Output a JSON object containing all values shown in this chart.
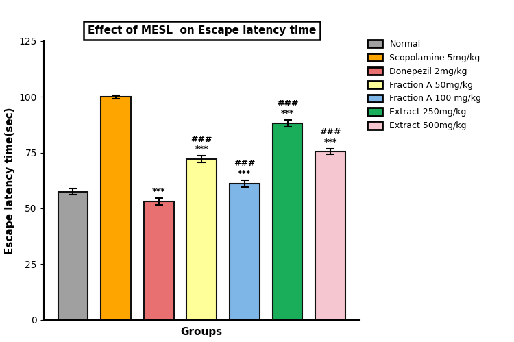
{
  "title": "Effect of MESL  on Escape latency time",
  "xlabel": "Groups",
  "ylabel": "Escape latency time(sec)",
  "values": [
    57.5,
    100.0,
    53.0,
    72.0,
    61.0,
    88.0,
    75.5
  ],
  "errors": [
    1.5,
    0.8,
    1.5,
    1.5,
    1.5,
    1.5,
    1.2
  ],
  "bar_colors": [
    "#A0A0A0",
    "#FFA500",
    "#E87070",
    "#FFFF99",
    "#7EB6E8",
    "#1AAD5A",
    "#F5C6D0"
  ],
  "bar_edge_colors": [
    "#111111",
    "#111111",
    "#111111",
    "#111111",
    "#111111",
    "#111111",
    "#111111"
  ],
  "ylim": [
    0,
    125
  ],
  "yticks": [
    0,
    25,
    50,
    75,
    100,
    125
  ],
  "legend_labels": [
    "Normal",
    "Scopolamine 5mg/kg",
    "Donepezil 2mg/kg",
    "Fraction A 50mg/kg",
    "Fraction A 100 mg/kg",
    "Extract 250mg/kg",
    "Extract 500mg/kg"
  ],
  "legend_colors": [
    "#A0A0A0",
    "#FFA500",
    "#E87070",
    "#FFFF99",
    "#7EB6E8",
    "#1AAD5A",
    "#F5C6D0"
  ],
  "annotations_hash": [
    null,
    null,
    null,
    "###",
    "###",
    "###",
    "###"
  ],
  "annotations_star": [
    null,
    null,
    "***",
    "***",
    "***",
    "***",
    "***"
  ],
  "background_color": "#FFFFFF",
  "title_fontsize": 11,
  "tick_fontsize": 10,
  "label_fontsize": 11,
  "annot_fontsize": 9
}
